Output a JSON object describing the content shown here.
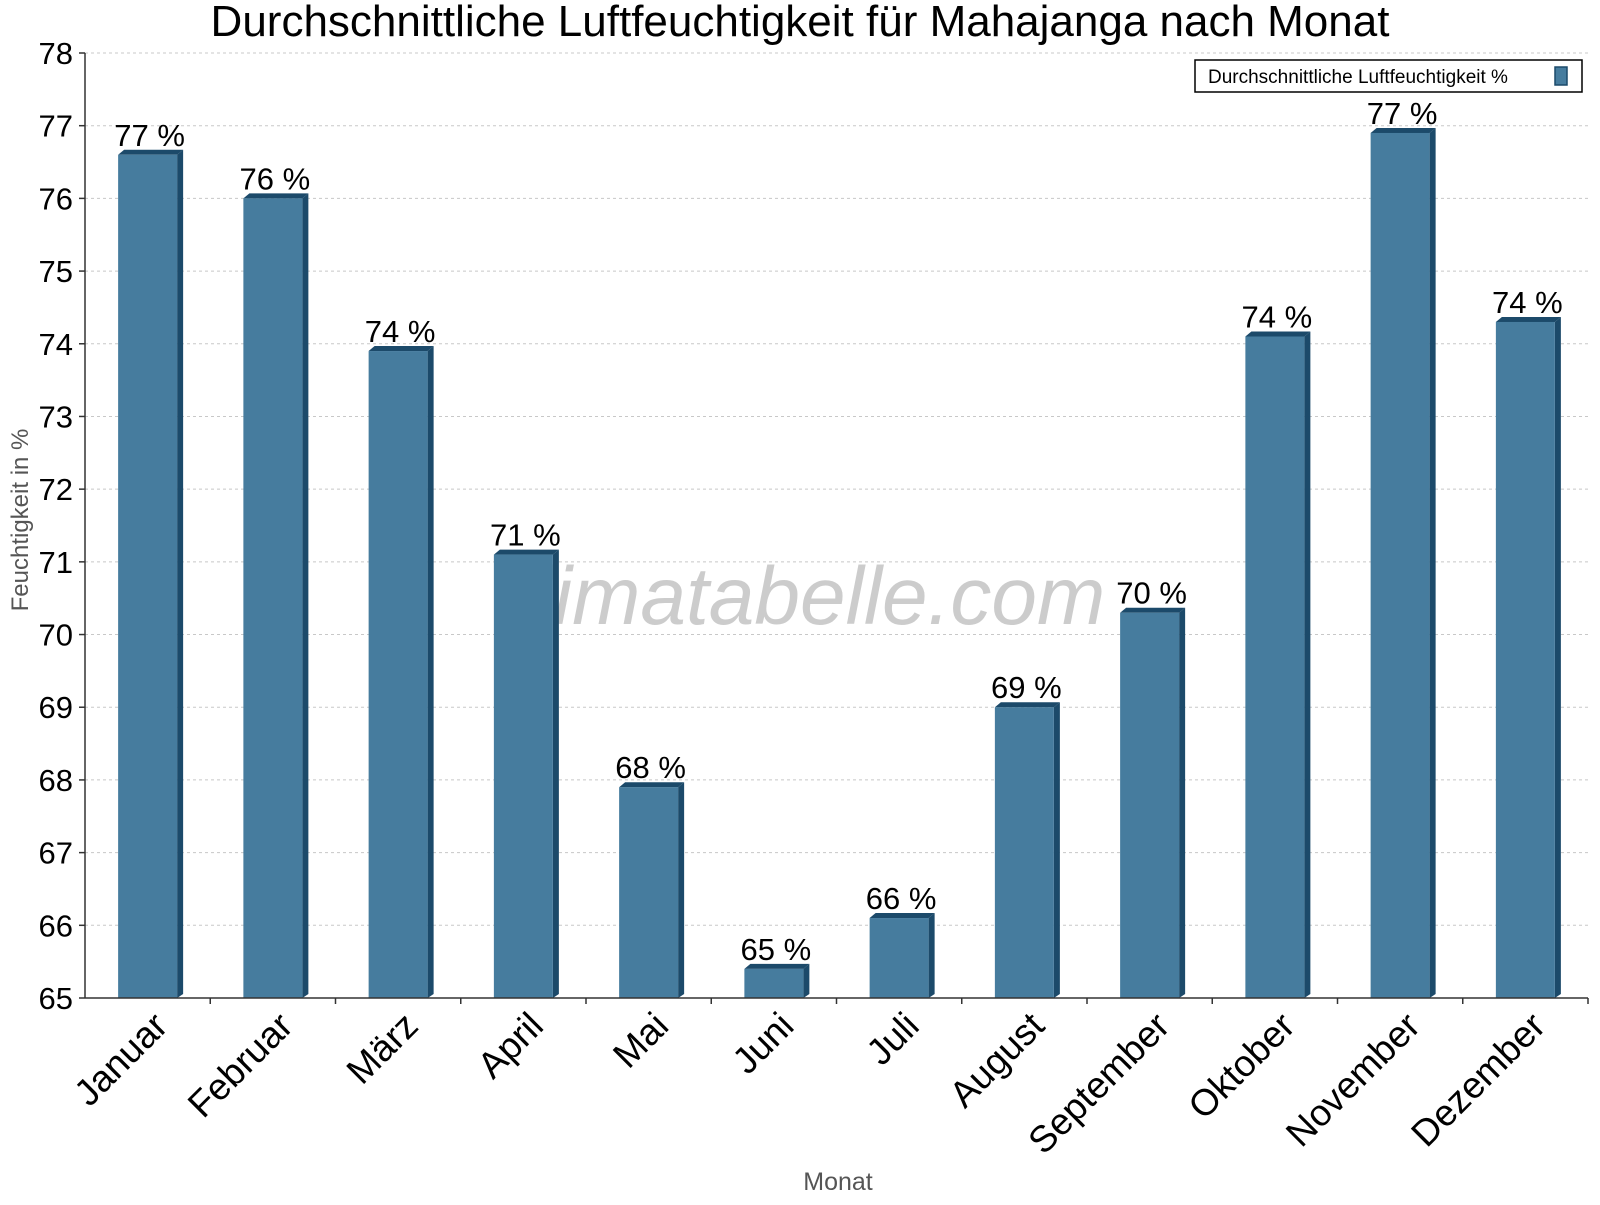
{
  "chart_data": {
    "type": "bar",
    "title": "Durchschnittliche Luftfeuchtigkeit für Mahajanga nach Monat",
    "xlabel": "Monat",
    "ylabel": "Feuchtigkeit in %",
    "ylim": [
      65,
      78
    ],
    "yticks": [
      65,
      66,
      67,
      68,
      69,
      70,
      71,
      72,
      73,
      74,
      75,
      76,
      77,
      78
    ],
    "grid": true,
    "legend_position": "top-right",
    "categories": [
      "Januar",
      "Februar",
      "März",
      "April",
      "Mai",
      "Juni",
      "Juli",
      "August",
      "September",
      "Oktober",
      "November",
      "Dezember"
    ],
    "series": [
      {
        "name": "Durchschnittliche Luftfeuchtigkeit %",
        "values": [
          76.6,
          76.0,
          73.9,
          71.1,
          67.9,
          65.4,
          66.1,
          69.0,
          70.3,
          74.1,
          76.9,
          74.3
        ],
        "data_labels": [
          "77 %",
          "76 %",
          "74 %",
          "71 %",
          "68 %",
          "65 %",
          "66 %",
          "69 %",
          "70 %",
          "74 %",
          "77 %",
          "74 %"
        ]
      }
    ],
    "watermark": "klimatabelle.com",
    "colors": {
      "bar_face": "#467c9e",
      "bar_side": "#1c4a6a",
      "grid": "#c8c8c8",
      "axis": "#333333",
      "watermark": "#c0c0c0",
      "axis_title": "#555555"
    }
  }
}
